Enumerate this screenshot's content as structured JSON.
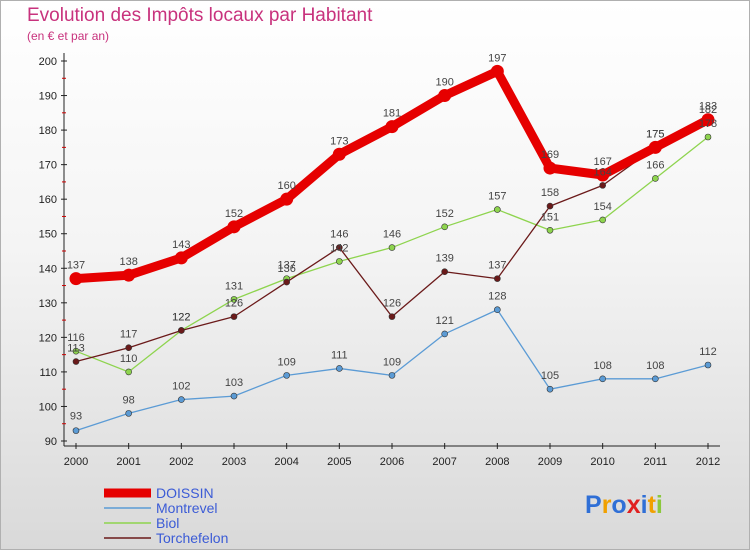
{
  "header": {
    "title": "Evolution des Impôts locaux par Habitant",
    "subtitle": "(en € et par an)"
  },
  "logo": {
    "letters": [
      "P",
      "r",
      "o",
      "x",
      "i",
      "t",
      "i"
    ]
  },
  "colors": {
    "DOISSIN": "#e60000",
    "Montrevel": "#5b9bd5",
    "Biol": "#8ed44e",
    "Torchefelon": "#6b1a1a",
    "title": "#c8327d",
    "legend_text": "#3b5bd6",
    "logo": [
      "#2f6fd6",
      "#f0a000",
      "#2f6fd6",
      "#e02020",
      "#2f6fd6",
      "#f0a000",
      "#8bc83c"
    ]
  },
  "chart_data": {
    "type": "line",
    "title": "Evolution des Impôts locaux par Habitant",
    "subtitle": "(en € et par an)",
    "xlabel": "",
    "ylabel": "",
    "categories": [
      "2000",
      "2001",
      "2002",
      "2003",
      "2004",
      "2005",
      "2006",
      "2007",
      "2008",
      "2009",
      "2010",
      "2011",
      "2012"
    ],
    "yticks": [
      90,
      100,
      110,
      120,
      130,
      140,
      150,
      160,
      170,
      180,
      190,
      200
    ],
    "ylim": [
      90,
      200
    ],
    "grid": false,
    "legend_position": "bottom-left",
    "series": [
      {
        "name": "DOISSIN",
        "values": [
          137,
          138,
          143,
          152,
          160,
          173,
          181,
          190,
          197,
          169,
          167,
          175,
          183
        ]
      },
      {
        "name": "Montrevel",
        "values": [
          93,
          98,
          102,
          103,
          109,
          111,
          109,
          121,
          128,
          105,
          108,
          108,
          112
        ]
      },
      {
        "name": "Biol",
        "values": [
          116,
          110,
          122,
          131,
          137,
          142,
          146,
          152,
          157,
          151,
          154,
          166,
          178
        ]
      },
      {
        "name": "Torchefelon",
        "values": [
          113,
          117,
          122,
          126,
          136,
          146,
          126,
          139,
          137,
          158,
          164,
          175,
          182
        ]
      }
    ]
  }
}
